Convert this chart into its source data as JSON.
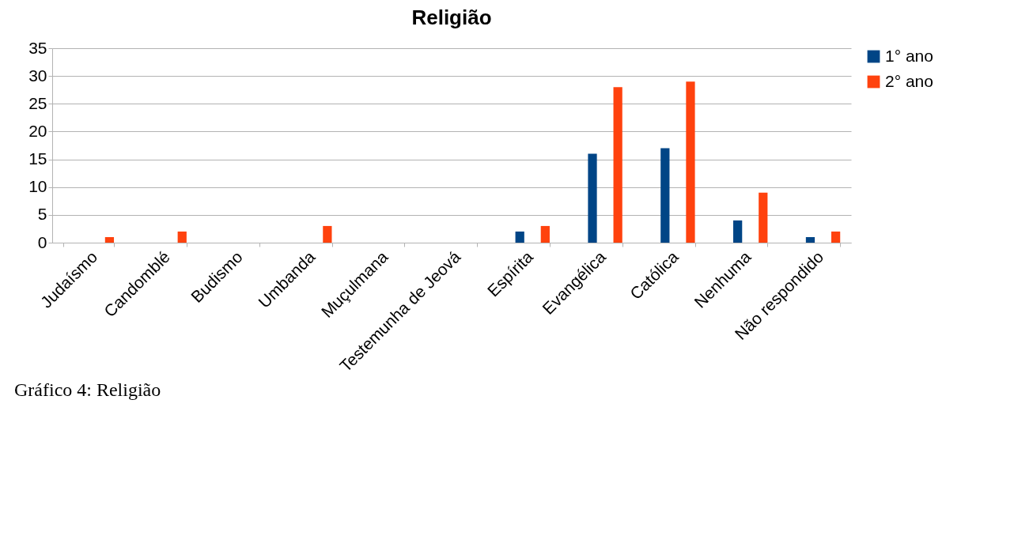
{
  "chart_data": {
    "type": "bar",
    "title": "Religião",
    "categories": [
      "Judaísmo",
      "Candomblé",
      "Budismo",
      "Umbanda",
      "Muçulmana",
      "Testemunha de Jeová",
      "Espírita",
      "Evangélica",
      "Católica",
      "Nenhuma",
      "Não respondido"
    ],
    "series": [
      {
        "name": "1° ano",
        "color": "#004586",
        "values": [
          0,
          0,
          0,
          0,
          0,
          0,
          2,
          16,
          17,
          4,
          1
        ]
      },
      {
        "name": "2° ano",
        "color": "#ff420e",
        "values": [
          1,
          2,
          0,
          3,
          0,
          0,
          3,
          28,
          29,
          9,
          2
        ]
      }
    ],
    "ylim": [
      0,
      35
    ],
    "yticks": [
      0,
      5,
      10,
      15,
      20,
      25,
      30,
      35
    ],
    "grid": "y",
    "legend": "right",
    "annotations": [
      "Gráfico  4: Religião"
    ]
  }
}
